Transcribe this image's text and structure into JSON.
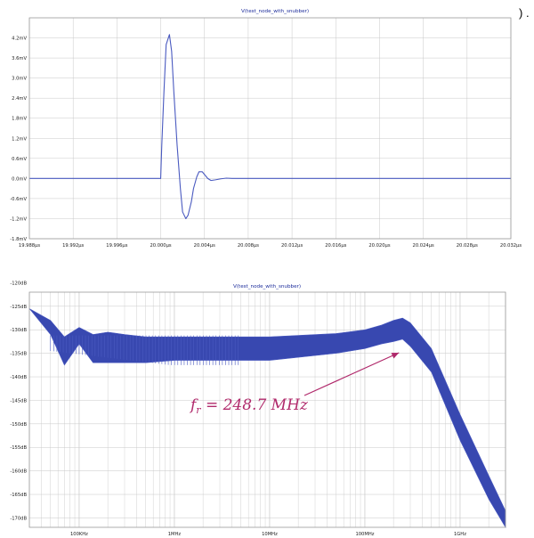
{
  "corner_mark": ") .",
  "colors": {
    "trace": "#4a5ac0",
    "trace_fill": "#3848b0",
    "grid": "#c8c8c8",
    "frame": "#9a9a9a",
    "title": "#1a2a9a",
    "annotation": "#b0296b"
  },
  "chart_data": [
    {
      "type": "line",
      "title": "V(test_node_with_snubber)",
      "xlabel": "",
      "ylabel": "",
      "x_unit": "µs",
      "y_unit": "mV",
      "xlim": [
        19.988,
        20.032
      ],
      "ylim": [
        -1.8,
        4.8
      ],
      "grid": true,
      "x_tick_labels": [
        "19.988µs",
        "19.992µs",
        "19.996µs",
        "20.000µs",
        "20.004µs",
        "20.008µs",
        "20.012µs",
        "20.016µs",
        "20.020µs",
        "20.024µs",
        "20.028µs",
        "20.032µs"
      ],
      "y_tick_labels": [
        "-1.8mV",
        "-1.2mV",
        "-0.6mV",
        "0.0mV",
        "0.6mV",
        "1.2mV",
        "1.8mV",
        "2.4mV",
        "3.0mV",
        "3.6mV",
        "4.2mV"
      ],
      "series": [
        {
          "x": [
            19.988,
            20.0,
            20.0001,
            20.0003,
            20.0005,
            20.0008,
            20.001,
            20.0012,
            20.0015,
            20.0018,
            20.002,
            20.0023,
            20.0025,
            20.0028,
            20.003,
            20.0033,
            20.0035,
            20.0038,
            20.004,
            20.0043,
            20.0046,
            20.005,
            20.0055,
            20.006,
            20.0065,
            20.032
          ],
          "y": [
            0.0,
            0.0,
            1.0,
            2.6,
            4.0,
            4.3,
            3.8,
            2.6,
            1.0,
            -0.3,
            -1.0,
            -1.2,
            -1.1,
            -0.7,
            -0.3,
            0.05,
            0.2,
            0.2,
            0.12,
            0.0,
            -0.06,
            -0.04,
            -0.01,
            0.01,
            0.0,
            0.0
          ]
        }
      ]
    },
    {
      "type": "line",
      "title": "V(test_node_with_snubber)",
      "xlabel": "",
      "ylabel": "",
      "x_scale": "log",
      "x_unit": "Hz",
      "y_unit": "dB",
      "xlim": [
        30000,
        3000000000
      ],
      "ylim": [
        -172,
        -122
      ],
      "grid": true,
      "x_tick_labels": [
        "100KHz",
        "1MHz",
        "10MHz",
        "100MHz",
        "1GHz"
      ],
      "y_tick_labels": [
        "-120dB",
        "-125dB",
        "-130dB",
        "-135dB",
        "-140dB",
        "-145dB",
        "-150dB",
        "-155dB",
        "-160dB",
        "-165dB",
        "-170dB"
      ],
      "series": [
        {
          "x": [
            30000,
            50000,
            70000,
            100000,
            140000,
            200000,
            300000,
            500000,
            1000000,
            3000000,
            10000000,
            50000000,
            100000000,
            150000000,
            200000000,
            248700000,
            300000000,
            500000000,
            1000000000,
            2000000000,
            3000000000
          ],
          "y_upper": [
            -125.5,
            -128.0,
            -131.5,
            -129.5,
            -131.0,
            -130.5,
            -131.0,
            -131.5,
            -131.5,
            -131.5,
            -131.5,
            -130.8,
            -130.0,
            -129.0,
            -128.0,
            -127.5,
            -128.5,
            -134.0,
            -148.0,
            -161.0,
            -168.5
          ],
          "y_lower": [
            -125.5,
            -131.0,
            -137.5,
            -133.0,
            -137.0,
            -137.0,
            -137.0,
            -137.0,
            -136.5,
            -136.5,
            -136.5,
            -135.0,
            -134.0,
            -133.0,
            -132.5,
            -132.0,
            -133.5,
            -139.0,
            -153.5,
            -166.0,
            -172.0
          ]
        }
      ],
      "annotation": {
        "text_main": "f",
        "text_sub": "r",
        "text_rest": " = 248.7 MHz",
        "target_x": 248700000,
        "target_y": -134.5
      }
    }
  ]
}
